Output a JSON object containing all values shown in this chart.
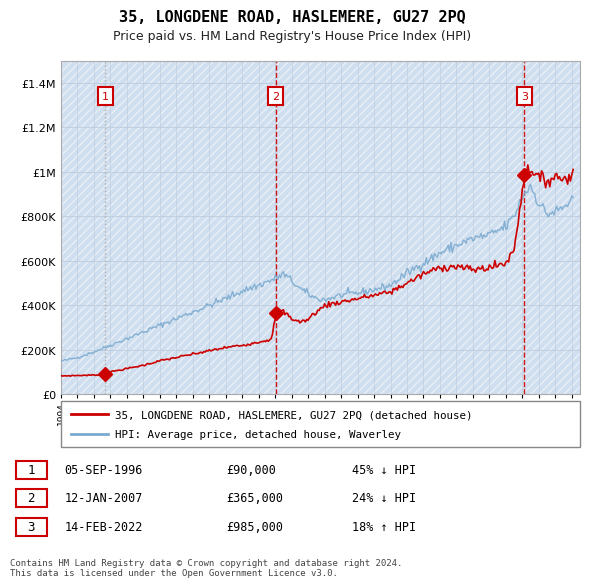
{
  "title": "35, LONGDENE ROAD, HASLEMERE, GU27 2PQ",
  "subtitle": "Price paid vs. HM Land Registry's House Price Index (HPI)",
  "legend_line1": "35, LONGDENE ROAD, HASLEMERE, GU27 2PQ (detached house)",
  "legend_line2": "HPI: Average price, detached house, Waverley",
  "footer": "Contains HM Land Registry data © Crown copyright and database right 2024.\nThis data is licensed under the Open Government Licence v3.0.",
  "ylim": [
    0,
    1500000
  ],
  "yticks": [
    0,
    200000,
    400000,
    600000,
    800000,
    1000000,
    1200000,
    1400000
  ],
  "hpi_color": "#7aaad0",
  "price_color": "#cc0000",
  "bg_color": "#dce8f5",
  "hatch_color": "#c5d8ea",
  "trans_years": [
    1996.68,
    2007.04,
    2022.12
  ],
  "trans_prices": [
    90000,
    365000,
    985000
  ],
  "trans_nums": [
    "1",
    "2",
    "3"
  ],
  "trans1_linestyle": "dotted",
  "trans2_linestyle": "dashed",
  "trans3_linestyle": "dashed",
  "table_data": [
    [
      "1",
      "05-SEP-1996",
      "£90,000",
      "45% ↓ HPI"
    ],
    [
      "2",
      "12-JAN-2007",
      "£365,000",
      "24% ↓ HPI"
    ],
    [
      "3",
      "14-FEB-2022",
      "£985,000",
      "18% ↑ HPI"
    ]
  ],
  "hpi_key_years": [
    1994,
    1995,
    1996,
    1997,
    1998,
    1999,
    2000,
    2001,
    2002,
    2003,
    2004,
    2005,
    2006,
    2007,
    2007.5,
    2008,
    2008.5,
    2009,
    2009.5,
    2010,
    2011,
    2012,
    2013,
    2014,
    2015,
    2016,
    2017,
    2018,
    2019,
    2020,
    2021,
    2021.5,
    2022,
    2022.5,
    2023,
    2023.5,
    2024,
    2024.5,
    2025
  ],
  "hpi_key_vals": [
    148000,
    165000,
    190000,
    220000,
    250000,
    280000,
    310000,
    340000,
    370000,
    400000,
    430000,
    465000,
    490000,
    520000,
    540000,
    510000,
    475000,
    450000,
    430000,
    425000,
    445000,
    455000,
    470000,
    490000,
    545000,
    590000,
    635000,
    670000,
    700000,
    715000,
    755000,
    800000,
    890000,
    940000,
    860000,
    810000,
    820000,
    840000,
    870000
  ],
  "price_key_years": [
    1994,
    1996.0,
    1996.68,
    1997,
    1998,
    1999,
    2000,
    2001,
    2002,
    2003,
    2004,
    2005,
    2006,
    2006.8,
    2007.04,
    2007.3,
    2007.8,
    2008,
    2008.5,
    2009,
    2009.3,
    2009.8,
    2010,
    2011,
    2012,
    2013,
    2014,
    2015,
    2016,
    2017,
    2018,
    2019,
    2020,
    2021,
    2021.5,
    2022.12,
    2022.5,
    2023,
    2023.5,
    2024,
    2024.5,
    2025
  ],
  "price_key_vals": [
    82000,
    86000,
    90000,
    100000,
    115000,
    130000,
    150000,
    165000,
    180000,
    195000,
    210000,
    220000,
    235000,
    248000,
    365000,
    380000,
    355000,
    340000,
    325000,
    335000,
    360000,
    385000,
    400000,
    415000,
    430000,
    445000,
    460000,
    500000,
    540000,
    570000,
    575000,
    560000,
    570000,
    590000,
    650000,
    985000,
    1020000,
    970000,
    960000,
    980000,
    970000,
    985000
  ]
}
